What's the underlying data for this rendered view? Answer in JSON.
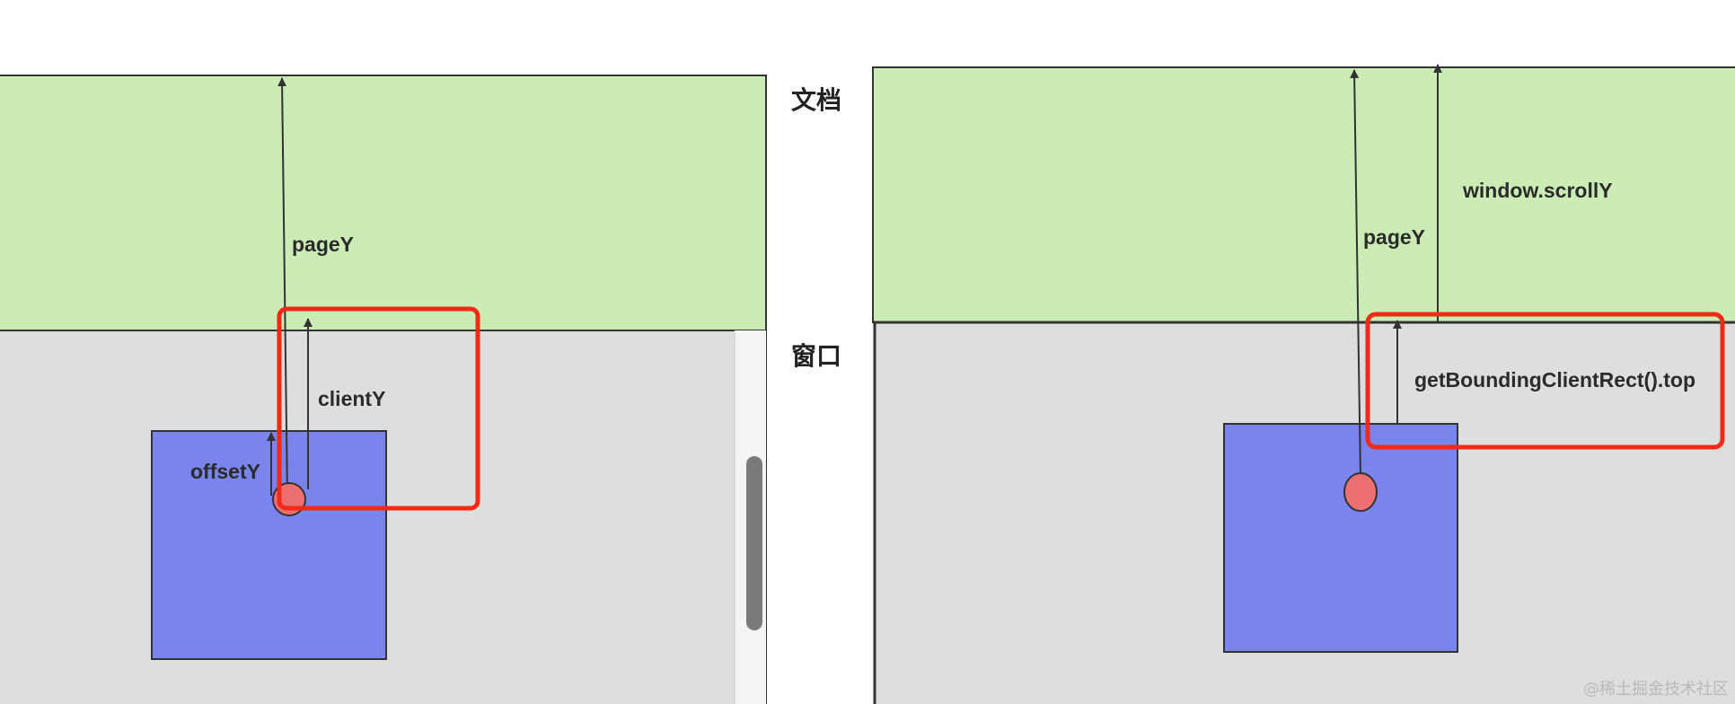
{
  "labels": {
    "document": "文档",
    "window": "窗口"
  },
  "left_panel": {
    "page_y": "pageY",
    "client_y": "clientY",
    "offset_y": "offsetY"
  },
  "right_panel": {
    "page_y": "pageY",
    "scroll_y": "window.scrollY",
    "bounding_top": "getBoundingClientRect().top"
  },
  "watermark": "@稀土掘金技术社区",
  "colors": {
    "document_fill": "#cbecb4",
    "window_fill": "#dedede",
    "element_fill": "#7984ec",
    "pointer_fill": "#ec7070",
    "highlight_stroke": "#f02a14",
    "line_stroke": "#333333"
  }
}
